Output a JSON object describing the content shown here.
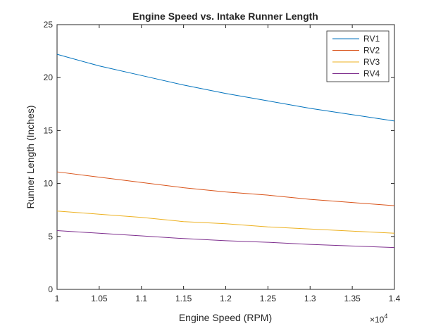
{
  "chart_data": {
    "type": "line",
    "title": "Engine Speed vs. Intake Runner Length",
    "xlabel": "Engine Speed (RPM)",
    "ylabel": "Runner Length (Inches)",
    "x_exponent_label": "×10",
    "x_exponent_power": "4",
    "xlim": [
      10000,
      14000
    ],
    "ylim": [
      0,
      25
    ],
    "x_ticks": [
      10000,
      10500,
      11000,
      11500,
      12000,
      12500,
      13000,
      13500,
      14000
    ],
    "x_tick_labels": [
      "1",
      "1.05",
      "1.1",
      "1.15",
      "1.2",
      "1.25",
      "1.3",
      "1.35",
      "1.4"
    ],
    "y_ticks": [
      0,
      5,
      10,
      15,
      20,
      25
    ],
    "y_tick_labels": [
      "0",
      "5",
      "10",
      "15",
      "20",
      "25"
    ],
    "grid": false,
    "legend_position": "top-right",
    "x": [
      10000,
      10500,
      11000,
      11500,
      12000,
      12500,
      13000,
      13500,
      14000
    ],
    "series": [
      {
        "name": "RV1",
        "color": "#0072BD",
        "values": [
          22.2,
          21.1,
          20.2,
          19.3,
          18.5,
          17.8,
          17.1,
          16.5,
          15.9
        ]
      },
      {
        "name": "RV2",
        "color": "#D95319",
        "values": [
          11.1,
          10.6,
          10.1,
          9.6,
          9.2,
          8.9,
          8.5,
          8.2,
          7.9
        ]
      },
      {
        "name": "RV3",
        "color": "#EDB120",
        "values": [
          7.4,
          7.1,
          6.8,
          6.4,
          6.2,
          5.9,
          5.7,
          5.5,
          5.3
        ]
      },
      {
        "name": "RV4",
        "color": "#7E2F8E",
        "values": [
          5.55,
          5.3,
          5.05,
          4.8,
          4.6,
          4.45,
          4.25,
          4.1,
          3.95
        ]
      }
    ]
  }
}
